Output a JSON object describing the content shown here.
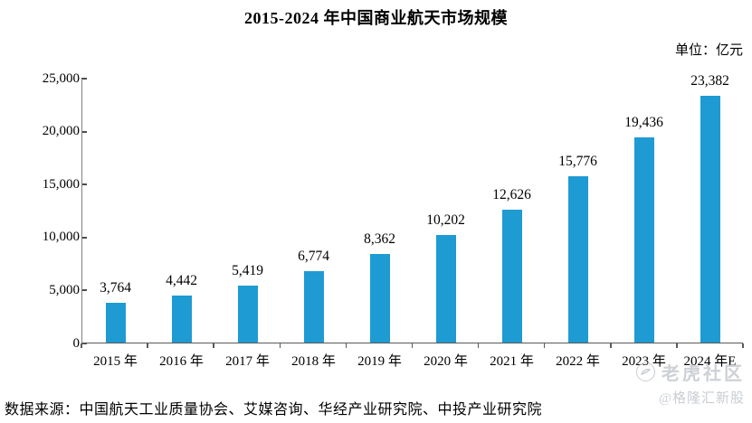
{
  "title": "2015-2024 年中国商业航天市场规模",
  "unit_label": "单位：亿元",
  "source_note": "数据来源：中国航天工业质量协会、艾媒咨询、华经产业研究院、中投产业研究院",
  "watermark": {
    "brand": "老虎社区",
    "handle": "@格隆汇新股",
    "logo_icon": "tiger-swoosh-circle"
  },
  "colors": {
    "bar": "#1E9BD2",
    "axis": "#595959",
    "text": "#000000",
    "watermark": "#c8ccd1"
  },
  "chart_data": {
    "type": "bar",
    "title": "2015-2024 年中国商业航天市场规模",
    "unit": "亿元",
    "categories": [
      "2015 年",
      "2016 年",
      "2017 年",
      "2018 年",
      "2019 年",
      "2020 年",
      "2021 年",
      "2022 年",
      "2023 年",
      "2024 年E"
    ],
    "values": [
      3764,
      4442,
      5419,
      6774,
      8362,
      10202,
      12626,
      15776,
      19436,
      23382
    ],
    "value_labels": [
      "3,764",
      "4,442",
      "5,419",
      "6,774",
      "8,362",
      "10,202",
      "12,626",
      "15,776",
      "19,436",
      "23,382"
    ],
    "xlabel": "",
    "ylabel": "",
    "ylim": [
      0,
      25000
    ],
    "yticks": [
      0,
      5000,
      10000,
      15000,
      20000,
      25000
    ],
    "ytick_labels": [
      "0",
      "5,000",
      "10,000",
      "15,000",
      "20,000",
      "25,000"
    ],
    "grid": false,
    "legend": "none",
    "bar_color": "#1E9BD2"
  }
}
